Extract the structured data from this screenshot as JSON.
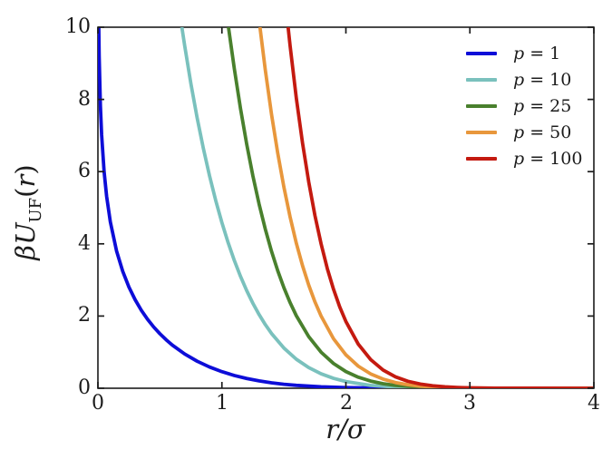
{
  "figure": {
    "background": "#ffffff",
    "frame_color": "#1c1c1c",
    "text_color": "#1c1c1c"
  },
  "axes": {
    "xlabel": {
      "text": "r/σ"
    },
    "ylabel": {
      "prefix": "βU",
      "sub": "UF",
      "open": "(",
      "var": "r",
      "close": ")"
    },
    "xticks": {
      "values": [
        0,
        1,
        2,
        3,
        4
      ],
      "labels": [
        "0",
        "1",
        "2",
        "3",
        "4"
      ]
    },
    "yticks": {
      "values": [
        0,
        2,
        4,
        6,
        8,
        10
      ],
      "labels": [
        "0",
        "2",
        "4",
        "6",
        "8",
        "10"
      ]
    }
  },
  "chart_data": {
    "type": "line",
    "title": "",
    "xlabel": "r/σ",
    "ylabel": "βU_UF(r)",
    "xlim": [
      0,
      4
    ],
    "ylim": [
      0,
      10
    ],
    "grid": false,
    "legend_position": "upper right",
    "tick_direction": "in, mirrored on top and right",
    "series": [
      {
        "name": "p = 1",
        "p": 1,
        "color": "#0d0dd8",
        "legend": {
          "var": "p",
          "rest": "= 1"
        },
        "x": [
          0.007,
          0.01,
          0.02,
          0.03,
          0.05,
          0.07,
          0.1,
          0.15,
          0.2,
          0.25,
          0.3,
          0.35,
          0.4,
          0.45,
          0.5,
          0.55,
          0.6,
          0.7,
          0.8,
          0.9,
          1.0,
          1.1,
          1.2,
          1.3,
          1.4,
          1.5,
          1.6,
          1.8,
          2.0,
          2.2,
          2.5,
          3.0,
          3.5,
          4.0
        ],
        "y": [
          10,
          9.21,
          7.824,
          7.013,
          5.993,
          5.321,
          4.61,
          3.806,
          3.239,
          2.804,
          2.453,
          2.16,
          1.912,
          1.696,
          1.509,
          1.343,
          1.196,
          0.948,
          0.749,
          0.589,
          0.459,
          0.354,
          0.27,
          0.204,
          0.152,
          0.111,
          0.08,
          0.04,
          0.018,
          0.008,
          0.002,
          0.0,
          0.0,
          0.0
        ]
      },
      {
        "name": "p = 10",
        "p": 10,
        "color": "#7ac1bd",
        "legend": {
          "var": "p",
          "rest": "= 10"
        },
        "x": [
          0.677,
          0.7,
          0.75,
          0.8,
          0.85,
          0.9,
          0.95,
          1.0,
          1.05,
          1.1,
          1.15,
          1.2,
          1.25,
          1.3,
          1.35,
          1.4,
          1.5,
          1.6,
          1.7,
          1.8,
          1.9,
          2.0,
          2.2,
          2.4,
          2.6,
          2.8,
          3.0,
          3.5,
          4.0
        ],
        "y": [
          10,
          9.484,
          8.434,
          7.493,
          6.648,
          5.887,
          5.202,
          4.587,
          4.035,
          3.541,
          3.099,
          2.704,
          2.352,
          2.04,
          1.763,
          1.518,
          1.114,
          0.804,
          0.572,
          0.4,
          0.274,
          0.185,
          0.079,
          0.032,
          0.012,
          0.004,
          0.001,
          0.0,
          0.0
        ]
      },
      {
        "name": "p = 25",
        "p": 25,
        "color": "#49802d",
        "legend": {
          "var": "p",
          "rest": "= 25"
        },
        "x": [
          1.053,
          1.1,
          1.15,
          1.2,
          1.25,
          1.3,
          1.35,
          1.4,
          1.45,
          1.5,
          1.55,
          1.6,
          1.7,
          1.8,
          1.9,
          2.0,
          2.1,
          2.2,
          2.3,
          2.4,
          2.6,
          2.8,
          3.0,
          3.5,
          4.0
        ],
        "y": [
          10,
          8.853,
          7.747,
          6.76,
          5.88,
          5.1,
          4.407,
          3.795,
          3.259,
          2.785,
          2.372,
          2.01,
          1.43,
          0.999,
          0.686,
          0.462,
          0.305,
          0.199,
          0.126,
          0.079,
          0.029,
          0.01,
          0.003,
          0.0,
          0.0
        ]
      },
      {
        "name": "p = 50",
        "p": 50,
        "color": "#e8973c",
        "legend": {
          "var": "p",
          "rest": "= 50"
        },
        "x": [
          1.307,
          1.35,
          1.4,
          1.45,
          1.5,
          1.55,
          1.6,
          1.65,
          1.7,
          1.75,
          1.8,
          1.9,
          2.0,
          2.1,
          2.2,
          2.3,
          2.4,
          2.5,
          2.6,
          2.8,
          3.0,
          3.2,
          3.5,
          4.0
        ],
        "y": [
          10,
          8.815,
          7.59,
          6.518,
          5.57,
          4.744,
          4.02,
          3.398,
          2.86,
          2.395,
          2.0,
          1.372,
          0.925,
          0.611,
          0.397,
          0.253,
          0.158,
          0.097,
          0.058,
          0.02,
          0.006,
          0.002,
          0.0,
          0.0
        ]
      },
      {
        "name": "p = 100",
        "p": 100,
        "color": "#c41a10",
        "legend": {
          "var": "p",
          "rest": "= 100"
        },
        "x": [
          1.534,
          1.55,
          1.6,
          1.65,
          1.7,
          1.75,
          1.8,
          1.85,
          1.9,
          1.95,
          2.0,
          2.1,
          2.2,
          2.3,
          2.4,
          2.5,
          2.6,
          2.7,
          2.8,
          2.9,
          3.0,
          3.2,
          3.5,
          4.0
        ],
        "y": [
          10,
          9.487,
          8.04,
          6.796,
          5.72,
          4.79,
          4.0,
          3.316,
          2.744,
          2.254,
          1.849,
          1.221,
          0.794,
          0.505,
          0.316,
          0.193,
          0.116,
          0.068,
          0.039,
          0.022,
          0.012,
          0.004,
          0.001,
          0.0
        ]
      }
    ]
  }
}
